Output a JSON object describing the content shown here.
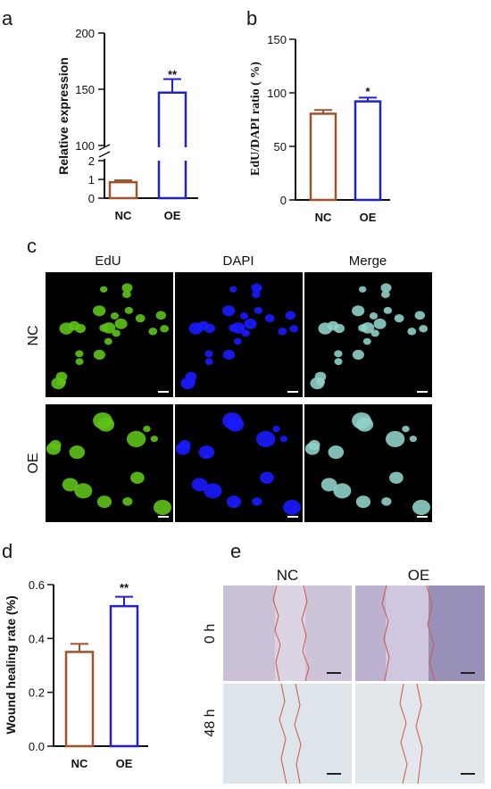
{
  "panels": {
    "a": "a",
    "b": "b",
    "c": "c",
    "d": "d",
    "e": "e"
  },
  "chart_data": [
    {
      "panel": "a",
      "type": "bar",
      "categories": [
        "NC",
        "OE"
      ],
      "values": [
        0.85,
        147
      ],
      "errors": [
        0.1,
        12
      ],
      "colors": [
        "#a0522d",
        "#2222cc"
      ],
      "ylabel": "Relative expression",
      "yaxis_break": [
        2,
        100
      ],
      "ylim": [
        0,
        200
      ],
      "lower_ticks": [
        "0",
        "1",
        "2"
      ],
      "upper_ticks": [
        "100",
        "150",
        "200"
      ],
      "significance": [
        "",
        "**"
      ]
    },
    {
      "panel": "b",
      "type": "bar",
      "categories": [
        "NC",
        "OE"
      ],
      "values": [
        80.5,
        92
      ],
      "errors": [
        3.5,
        3.5
      ],
      "colors": [
        "#a0522d",
        "#2222cc"
      ],
      "ylabel": "EdU/DAPI ratio ( %)",
      "ylim": [
        0,
        150
      ],
      "yticks": [
        "0",
        "50",
        "100",
        "150"
      ],
      "significance": [
        "",
        "*"
      ]
    },
    {
      "panel": "d",
      "type": "bar",
      "categories": [
        "NC",
        "OE"
      ],
      "values": [
        0.35,
        0.52
      ],
      "errors": [
        0.03,
        0.035
      ],
      "colors": [
        "#a0522d",
        "#2222cc"
      ],
      "ylabel": "Wound healing rate (%)",
      "ylim": [
        0,
        0.6
      ],
      "yticks": [
        "0.0",
        "0.2",
        "0.4",
        "0.6"
      ],
      "significance": [
        "",
        "**"
      ]
    }
  ],
  "panel_c": {
    "columns": [
      "EdU",
      "DAPI",
      "Merge"
    ],
    "rows": [
      "NC",
      "OE"
    ]
  },
  "panel_e": {
    "columns": [
      "NC",
      "OE"
    ],
    "rows": [
      "0 h",
      "48 h"
    ]
  }
}
